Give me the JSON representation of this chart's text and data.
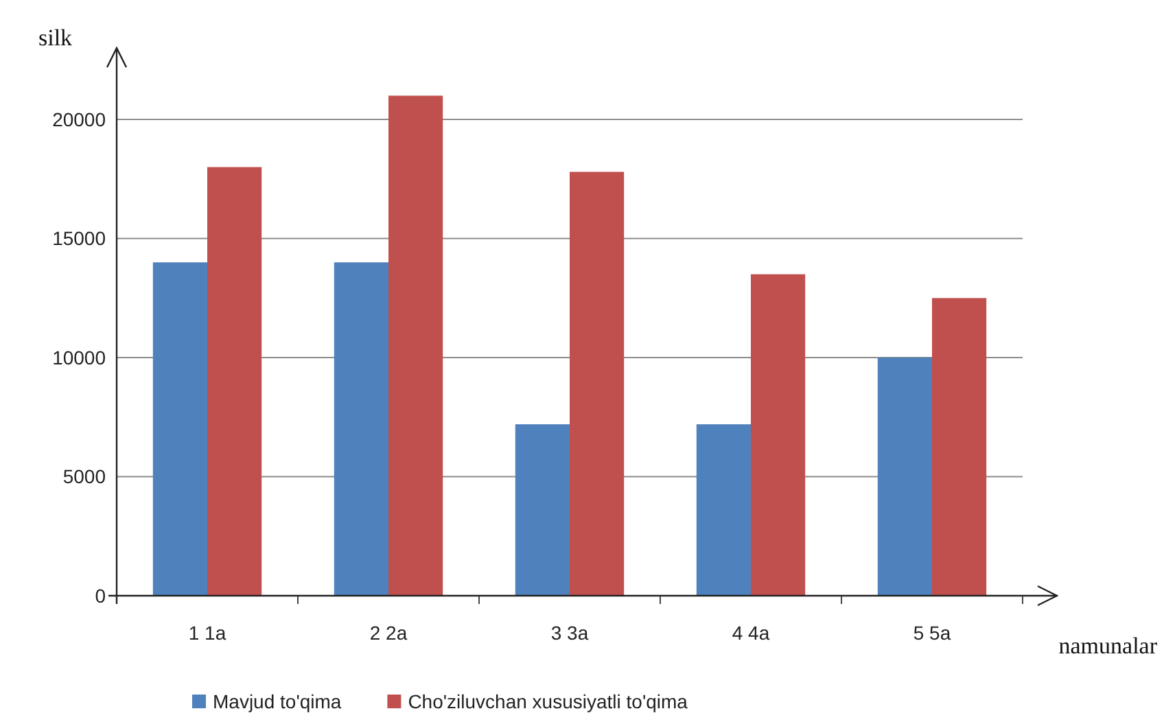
{
  "chart_data": {
    "type": "bar",
    "xlabel": "namunalar",
    "ylabel": "silk",
    "categories": [
      "1 1a",
      "2 2a",
      "3 3a",
      "4 4a",
      "5 5a"
    ],
    "series": [
      {
        "name": "Mavjud to'qima",
        "color": "#4f81bd",
        "values": [
          14000,
          14000,
          7200,
          7200,
          10000
        ]
      },
      {
        "name": "Cho'ziluvchan xususiyatli to'qima",
        "color": "#c0504d",
        "values": [
          18000,
          21000,
          17800,
          13500,
          12500
        ]
      }
    ],
    "ylim": [
      0,
      23000
    ],
    "yticks": [
      0,
      5000,
      10000,
      15000,
      20000
    ],
    "grid": "y",
    "legend": "bottom"
  }
}
